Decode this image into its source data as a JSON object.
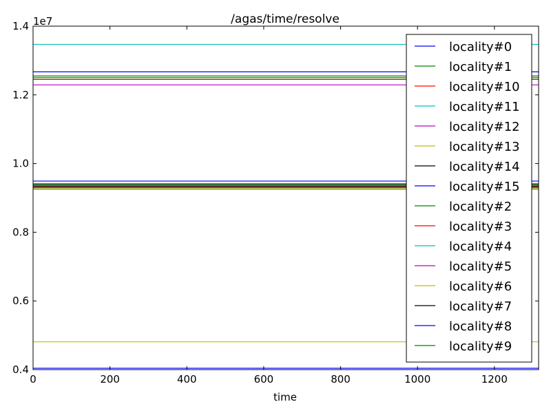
{
  "chart_data": {
    "type": "line",
    "title": "/agas/time/resolve",
    "xlabel": "time",
    "ylabel": "",
    "offset_label": "1e7",
    "xlim": [
      0,
      1315
    ],
    "ylim": [
      0.4,
      1.4
    ],
    "xticks": [
      0,
      200,
      400,
      600,
      800,
      1000,
      1200
    ],
    "yticks": [
      0.4,
      0.6,
      0.8,
      1.0,
      1.2,
      1.4
    ],
    "xtick_labels": [
      "0",
      "200",
      "400",
      "600",
      "800",
      "1000",
      "1200"
    ],
    "ytick_labels": [
      "0.4",
      "0.6",
      "0.8",
      "1.0",
      "1.2",
      "1.4"
    ],
    "grid": false,
    "legend_position": "top-right",
    "x": [
      0,
      1315
    ],
    "series": [
      {
        "name": "locality#0",
        "color": "#0000ff",
        "values": [
          1.267,
          1.267
        ]
      },
      {
        "name": "locality#1",
        "color": "#008000",
        "values": [
          1.25,
          1.25
        ]
      },
      {
        "name": "locality#10",
        "color": "#ff0000",
        "values": [
          1.245,
          1.245
        ]
      },
      {
        "name": "locality#11",
        "color": "#00bfbf",
        "values": [
          1.347,
          1.347
        ]
      },
      {
        "name": "locality#12",
        "color": "#bf00bf",
        "values": [
          1.229,
          1.229
        ]
      },
      {
        "name": "locality#13",
        "color": "#bfbf00",
        "values": [
          0.481,
          0.481
        ]
      },
      {
        "name": "locality#14",
        "color": "#000000",
        "values": [
          0.941,
          0.941
        ]
      },
      {
        "name": "locality#15",
        "color": "#0000ff",
        "values": [
          0.949,
          0.949
        ]
      },
      {
        "name": "locality#2",
        "color": "#008000",
        "values": [
          0.938,
          0.938
        ]
      },
      {
        "name": "locality#3",
        "color": "#ff0000",
        "values": [
          0.935,
          0.935
        ]
      },
      {
        "name": "locality#4",
        "color": "#00bfbf",
        "values": [
          0.925,
          0.925
        ]
      },
      {
        "name": "locality#5",
        "color": "#bf00bf",
        "values": [
          0.93,
          0.93
        ]
      },
      {
        "name": "locality#6",
        "color": "#bfbf00",
        "values": [
          0.927,
          0.927
        ]
      },
      {
        "name": "locality#7",
        "color": "#000000",
        "values": [
          0.933,
          0.933
        ]
      },
      {
        "name": "locality#8",
        "color": "#0000ff",
        "values": [
          0.404,
          0.404
        ]
      },
      {
        "name": "locality#9",
        "color": "#008000",
        "values": [
          1.255,
          1.255
        ]
      }
    ]
  }
}
